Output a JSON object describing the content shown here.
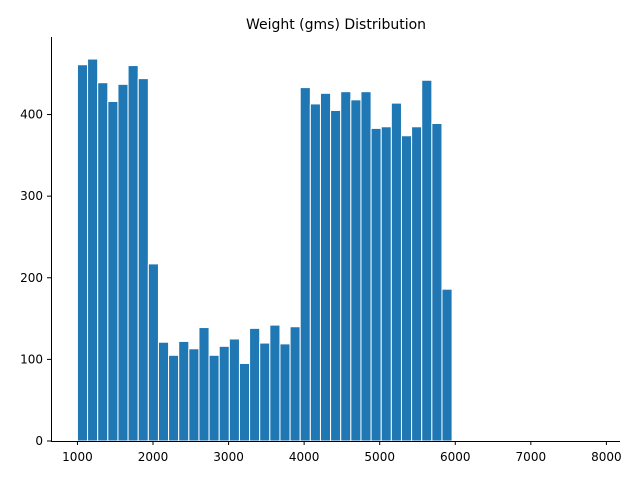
{
  "chart_data": {
    "type": "bar",
    "title": "Weight (gms) Distribution",
    "xlabel": "",
    "ylabel": "",
    "xlim": [
      650,
      8180
    ],
    "ylim": [
      0,
      495
    ],
    "grid": false,
    "bar_color": "#1f77b4",
    "bar_edge_color": "#ffffff",
    "x_ticks": [
      1000,
      2000,
      3000,
      4000,
      5000,
      6000,
      7000,
      8000
    ],
    "y_ticks": [
      0,
      100,
      200,
      300,
      400
    ],
    "bins": [
      {
        "x0": 1000,
        "x1": 1134,
        "value": 461
      },
      {
        "x0": 1134,
        "x1": 1268,
        "value": 468
      },
      {
        "x0": 1268,
        "x1": 1402,
        "value": 439
      },
      {
        "x0": 1402,
        "x1": 1536,
        "value": 416
      },
      {
        "x0": 1536,
        "x1": 1670,
        "value": 437
      },
      {
        "x0": 1670,
        "x1": 1804,
        "value": 460
      },
      {
        "x0": 1804,
        "x1": 1938,
        "value": 444
      },
      {
        "x0": 1938,
        "x1": 2072,
        "value": 217
      },
      {
        "x0": 2072,
        "x1": 2206,
        "value": 121
      },
      {
        "x0": 2206,
        "x1": 2340,
        "value": 105
      },
      {
        "x0": 2340,
        "x1": 2474,
        "value": 122
      },
      {
        "x0": 2474,
        "x1": 2608,
        "value": 113
      },
      {
        "x0": 2608,
        "x1": 2742,
        "value": 139
      },
      {
        "x0": 2742,
        "x1": 2876,
        "value": 105
      },
      {
        "x0": 2876,
        "x1": 3010,
        "value": 116
      },
      {
        "x0": 3010,
        "x1": 3144,
        "value": 125
      },
      {
        "x0": 3144,
        "x1": 3278,
        "value": 95
      },
      {
        "x0": 3278,
        "x1": 3412,
        "value": 138
      },
      {
        "x0": 3412,
        "x1": 3546,
        "value": 120
      },
      {
        "x0": 3546,
        "x1": 3680,
        "value": 142
      },
      {
        "x0": 3680,
        "x1": 3814,
        "value": 119
      },
      {
        "x0": 3814,
        "x1": 3948,
        "value": 140
      },
      {
        "x0": 3948,
        "x1": 4082,
        "value": 433
      },
      {
        "x0": 4082,
        "x1": 4216,
        "value": 413
      },
      {
        "x0": 4216,
        "x1": 4350,
        "value": 426
      },
      {
        "x0": 4350,
        "x1": 4484,
        "value": 405
      },
      {
        "x0": 4484,
        "x1": 4618,
        "value": 428
      },
      {
        "x0": 4618,
        "x1": 4752,
        "value": 418
      },
      {
        "x0": 4752,
        "x1": 4886,
        "value": 428
      },
      {
        "x0": 4886,
        "x1": 5020,
        "value": 383
      },
      {
        "x0": 5020,
        "x1": 5154,
        "value": 385
      },
      {
        "x0": 5154,
        "x1": 5288,
        "value": 414
      },
      {
        "x0": 5288,
        "x1": 5422,
        "value": 374
      },
      {
        "x0": 5422,
        "x1": 5556,
        "value": 385
      },
      {
        "x0": 5556,
        "x1": 5690,
        "value": 442
      },
      {
        "x0": 5690,
        "x1": 5824,
        "value": 389
      },
      {
        "x0": 5824,
        "x1": 5958,
        "value": 186
      },
      {
        "x0": 7620,
        "x1": 7754,
        "value": 1
      }
    ]
  }
}
